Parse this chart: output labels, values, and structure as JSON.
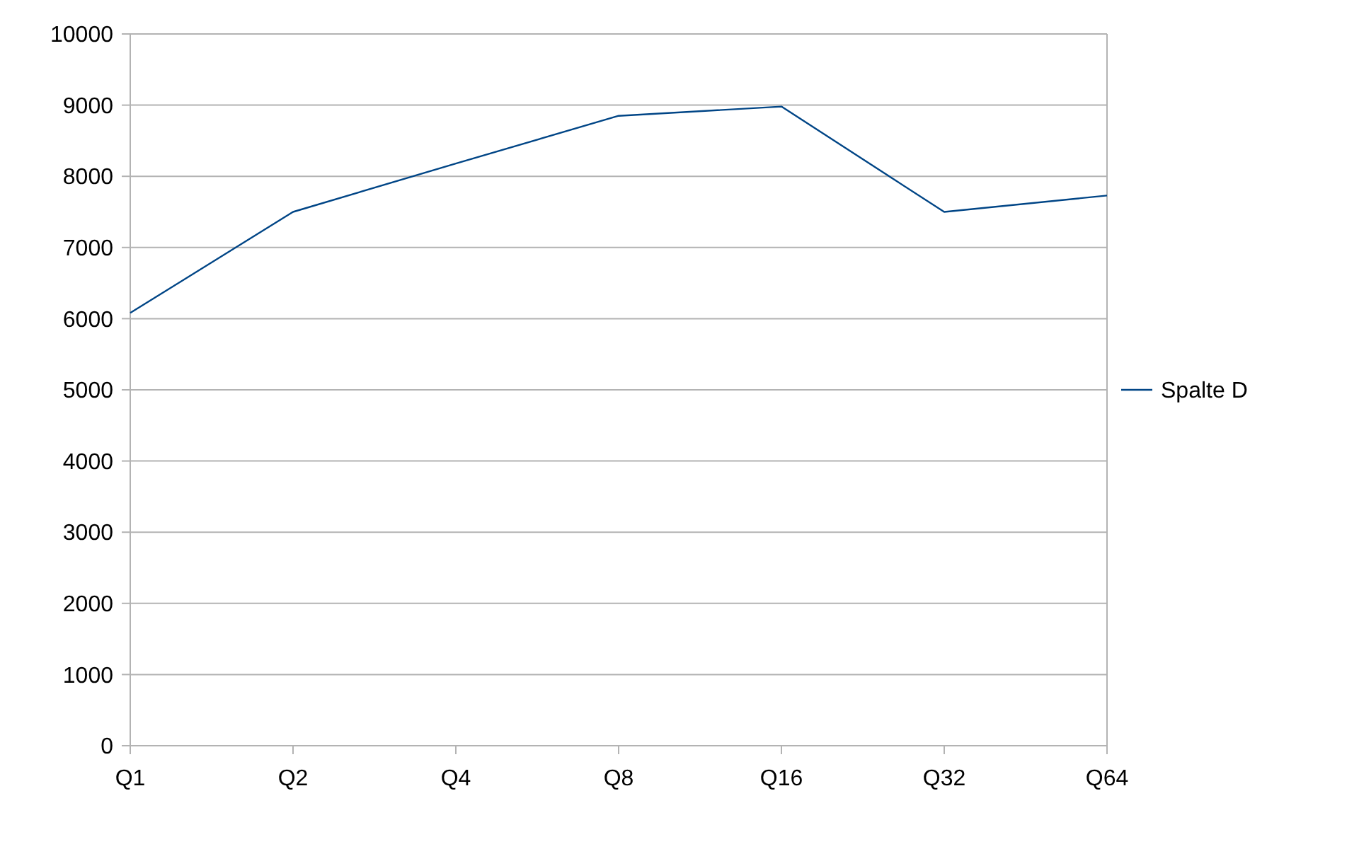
{
  "chart_data": {
    "type": "line",
    "categories": [
      "Q1",
      "Q2",
      "Q4",
      "Q8",
      "Q16",
      "Q32",
      "Q64"
    ],
    "series": [
      {
        "name": "Spalte D",
        "color": "#004586",
        "values": [
          6080,
          7500,
          8180,
          8850,
          8980,
          7500,
          7730
        ]
      }
    ],
    "ylim": [
      0,
      10000
    ],
    "yticks": [
      0,
      1000,
      2000,
      3000,
      4000,
      5000,
      6000,
      7000,
      8000,
      9000,
      10000
    ],
    "grid": "y",
    "legend": "right",
    "marker": "none",
    "line_style": "solid"
  }
}
